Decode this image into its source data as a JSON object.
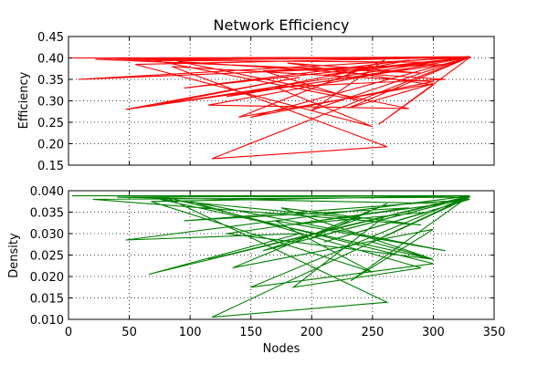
{
  "chart_data": [
    {
      "type": "line",
      "title": "Network Efficiency",
      "xlabel": "",
      "ylabel": "Efficiency",
      "xlim": [
        0,
        350
      ],
      "ylim": [
        0.15,
        0.45
      ],
      "x_ticks": [
        "0",
        "50",
        "100",
        "150",
        "200",
        "250",
        "300",
        "350"
      ],
      "y_ticks": [
        "0.15",
        "0.20",
        "0.25",
        "0.30",
        "0.35",
        "0.40",
        "0.45"
      ],
      "show_x_tick_labels": false,
      "grid": true,
      "color": "#ff0000",
      "series": [
        {
          "x": [
            3,
            330,
            8,
            310,
            47,
            190,
            66,
            330,
            118,
            262,
            85,
            300,
            150,
            330,
            55,
            250,
            170,
            310,
            90,
            280,
            115,
            330,
            230,
            300,
            140,
            260,
            200,
            330,
            22,
            290,
            180,
            300,
            255,
            330,
            70,
            240,
            160,
            300,
            130,
            280,
            95,
            330,
            210,
            295,
            40,
            330
          ],
          "y": [
            0.4,
            0.402,
            0.35,
            0.385,
            0.28,
            0.355,
            0.287,
            0.403,
            0.165,
            0.193,
            0.38,
            0.345,
            0.262,
            0.402,
            0.385,
            0.24,
            0.332,
            0.35,
            0.392,
            0.282,
            0.29,
            0.402,
            0.283,
            0.34,
            0.262,
            0.395,
            0.278,
            0.403,
            0.397,
            0.365,
            0.388,
            0.337,
            0.245,
            0.401,
            0.395,
            0.3,
            0.37,
            0.385,
            0.31,
            0.395,
            0.33,
            0.402,
            0.36,
            0.39,
            0.395,
            0.4
          ]
        }
      ]
    },
    {
      "type": "line",
      "title": "",
      "xlabel": "Nodes",
      "ylabel": "Density",
      "xlim": [
        0,
        350
      ],
      "ylim": [
        0.01,
        0.04
      ],
      "x_ticks": [
        "0",
        "50",
        "100",
        "150",
        "200",
        "250",
        "300",
        "350"
      ],
      "y_ticks": [
        "0.010",
        "0.015",
        "0.020",
        "0.025",
        "0.030",
        "0.035",
        "0.040"
      ],
      "show_x_tick_labels": true,
      "grid": true,
      "color": "#008000",
      "series": [
        {
          "x": [
            3,
            330,
            47,
            190,
            66,
            330,
            118,
            262,
            80,
            300,
            150,
            330,
            68,
            250,
            170,
            310,
            100,
            290,
            185,
            260,
            115,
            330,
            232,
            300,
            135,
            262,
            200,
            330,
            20,
            290,
            175,
            300,
            250,
            330,
            160,
            240,
            75,
            300,
            130,
            280,
            95,
            330,
            210,
            295,
            180,
            310,
            40,
            330
          ],
          "y": [
            0.0388,
            0.0388,
            0.0285,
            0.03,
            0.0205,
            0.0387,
            0.0105,
            0.014,
            0.0385,
            0.023,
            0.0175,
            0.0388,
            0.0375,
            0.021,
            0.033,
            0.026,
            0.0375,
            0.022,
            0.0175,
            0.034,
            0.024,
            0.0388,
            0.019,
            0.031,
            0.022,
            0.037,
            0.029,
            0.0385,
            0.038,
            0.032,
            0.036,
            0.024,
            0.028,
            0.0385,
            0.026,
            0.0335,
            0.038,
            0.024,
            0.03,
            0.036,
            0.033,
            0.038,
            0.028,
            0.035,
            0.032,
            0.037,
            0.0385,
            0.0388
          ]
        }
      ]
    }
  ]
}
